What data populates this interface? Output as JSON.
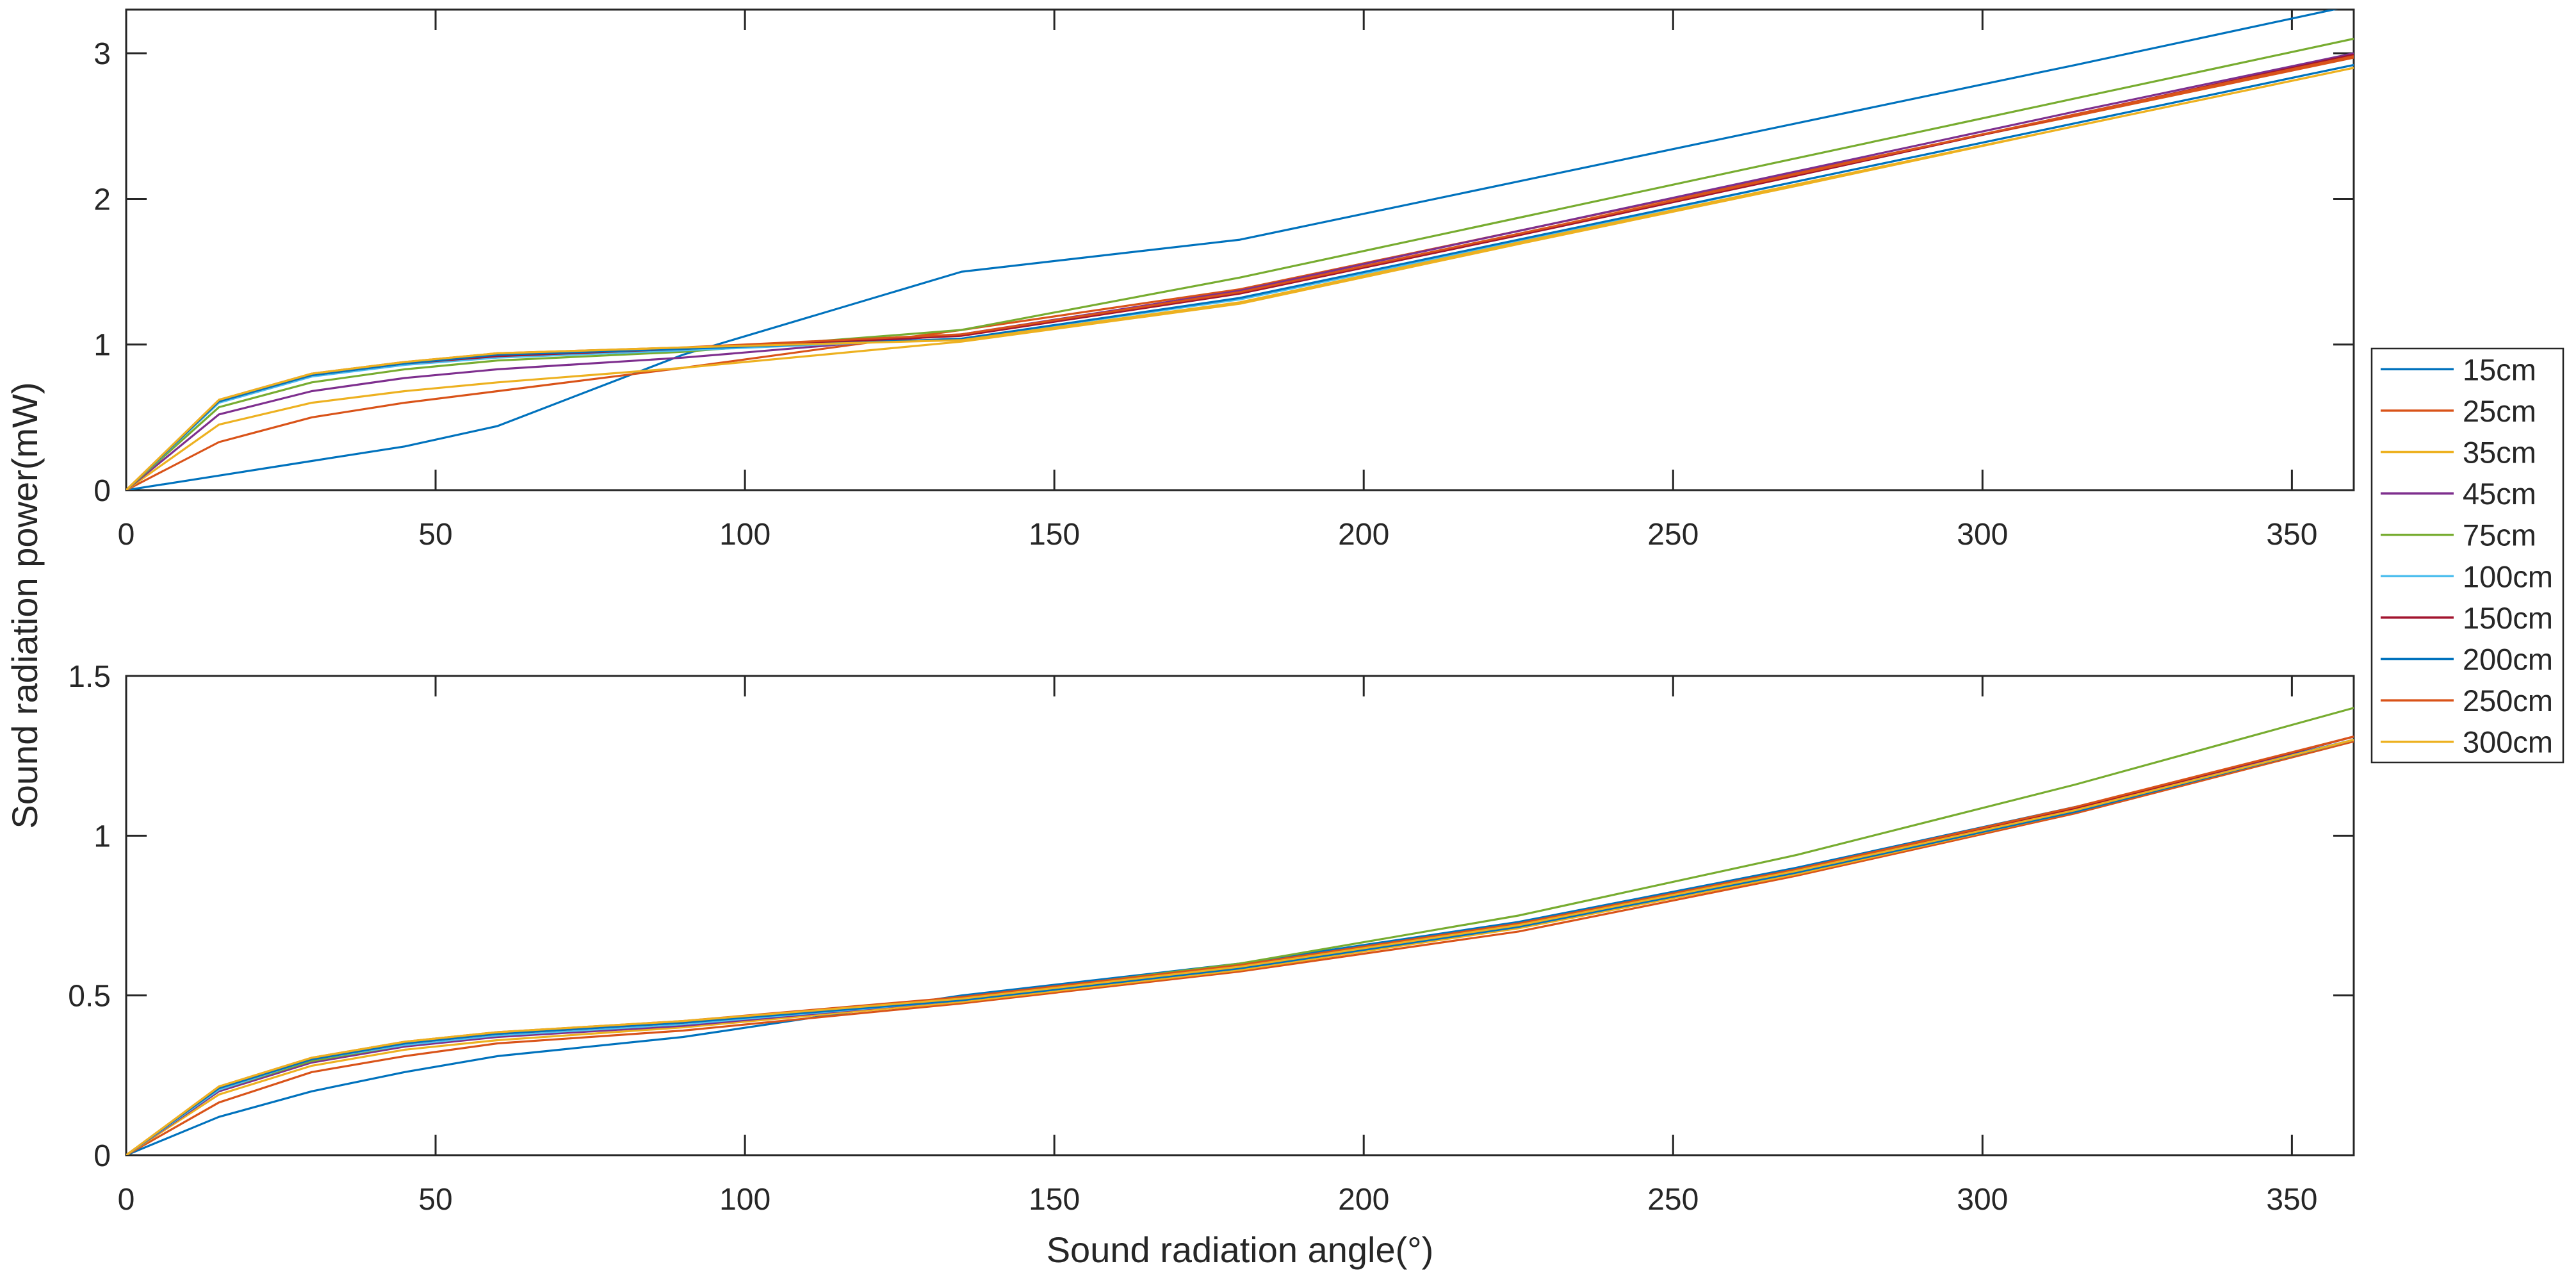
{
  "figure": {
    "background": "#ffffff",
    "axis_color": "#262626",
    "ylabel": "Sound radiation power(mW)",
    "xlabel": "Sound radiation angle(°)"
  },
  "legend": {
    "position": "right-of-top-plot",
    "entries": [
      {
        "label": "15cm",
        "color": "#0072BD"
      },
      {
        "label": "25cm",
        "color": "#D95319"
      },
      {
        "label": "35cm",
        "color": "#EDB120"
      },
      {
        "label": "45cm",
        "color": "#7E2F8E"
      },
      {
        "label": "75cm",
        "color": "#77AC30"
      },
      {
        "label": "100cm",
        "color": "#4DBEEE"
      },
      {
        "label": "150cm",
        "color": "#A2142F"
      },
      {
        "label": "200cm",
        "color": "#0072BD"
      },
      {
        "label": "250cm",
        "color": "#D95319"
      },
      {
        "label": "300cm",
        "color": "#EDB120"
      }
    ]
  },
  "chart_data": [
    {
      "type": "line",
      "subplot": "top",
      "title": "",
      "ylabel": "Sound radiation power(mW)",
      "xlabel": "Sound radiation angle(°)",
      "xlim": [
        0,
        360
      ],
      "ylim": [
        0,
        3.3
      ],
      "xticks": [
        0,
        50,
        100,
        150,
        200,
        250,
        300,
        350
      ],
      "yticks": [
        0,
        1,
        2,
        3
      ],
      "grid": false,
      "x": [
        0,
        15,
        30,
        45,
        60,
        90,
        135,
        180,
        225,
        270,
        315,
        360
      ],
      "series": [
        {
          "name": "15cm",
          "color": "#0072BD",
          "values": [
            0,
            0.1,
            0.2,
            0.3,
            0.44,
            0.93,
            1.5,
            1.72,
            2.12,
            2.52,
            2.92,
            3.33
          ]
        },
        {
          "name": "25cm",
          "color": "#D95319",
          "values": [
            0,
            0.33,
            0.5,
            0.6,
            0.68,
            0.84,
            1.1,
            1.38,
            1.78,
            2.18,
            2.57,
            2.97
          ]
        },
        {
          "name": "35cm",
          "color": "#EDB120",
          "values": [
            0,
            0.45,
            0.6,
            0.68,
            0.74,
            0.84,
            1.02,
            1.28,
            1.69,
            2.09,
            2.5,
            2.9
          ]
        },
        {
          "name": "45cm",
          "color": "#7E2F8E",
          "values": [
            0,
            0.52,
            0.68,
            0.77,
            0.83,
            0.91,
            1.07,
            1.37,
            1.78,
            2.19,
            2.6,
            3.0
          ]
        },
        {
          "name": "75cm",
          "color": "#77AC30",
          "values": [
            0,
            0.57,
            0.74,
            0.83,
            0.89,
            0.95,
            1.1,
            1.46,
            1.87,
            2.28,
            2.69,
            3.1
          ]
        },
        {
          "name": "100cm",
          "color": "#4DBEEE",
          "values": [
            0,
            0.6,
            0.78,
            0.86,
            0.91,
            0.96,
            1.04,
            1.31,
            1.71,
            2.12,
            2.52,
            2.92
          ]
        },
        {
          "name": "150cm",
          "color": "#A2142F",
          "values": [
            0,
            0.61,
            0.79,
            0.87,
            0.92,
            0.97,
            1.06,
            1.35,
            1.75,
            2.16,
            2.58,
            2.99
          ]
        },
        {
          "name": "200cm",
          "color": "#0072BD",
          "values": [
            0,
            0.61,
            0.79,
            0.87,
            0.93,
            0.97,
            1.04,
            1.32,
            1.72,
            2.12,
            2.52,
            2.92
          ]
        },
        {
          "name": "250cm",
          "color": "#D95319",
          "values": [
            0,
            0.62,
            0.8,
            0.88,
            0.94,
            0.98,
            1.07,
            1.36,
            1.76,
            2.17,
            2.58,
            2.98
          ]
        },
        {
          "name": "300cm",
          "color": "#EDB120",
          "values": [
            0,
            0.62,
            0.8,
            0.88,
            0.94,
            0.98,
            1.03,
            1.29,
            1.7,
            2.1,
            2.5,
            2.9
          ]
        }
      ]
    },
    {
      "type": "line",
      "subplot": "bottom",
      "title": "",
      "ylabel": "Sound radiation power(mW)",
      "xlabel": "Sound radiation angle(°)",
      "xlim": [
        0,
        360
      ],
      "ylim": [
        0,
        1.5
      ],
      "xticks": [
        0,
        50,
        100,
        150,
        200,
        250,
        300,
        350
      ],
      "yticks": [
        0,
        0.5,
        1,
        1.5
      ],
      "grid": false,
      "x": [
        0,
        15,
        30,
        45,
        60,
        90,
        135,
        180,
        225,
        270,
        315,
        360
      ],
      "series": [
        {
          "name": "15cm",
          "color": "#0072BD",
          "values": [
            0,
            0.12,
            0.2,
            0.26,
            0.31,
            0.37,
            0.5,
            0.6,
            0.73,
            0.9,
            1.09,
            1.3
          ]
        },
        {
          "name": "25cm",
          "color": "#D95319",
          "values": [
            0,
            0.165,
            0.26,
            0.31,
            0.35,
            0.39,
            0.475,
            0.575,
            0.7,
            0.875,
            1.07,
            1.295
          ]
        },
        {
          "name": "35cm",
          "color": "#EDB120",
          "values": [
            0,
            0.19,
            0.28,
            0.33,
            0.36,
            0.4,
            0.48,
            0.58,
            0.71,
            0.88,
            1.075,
            1.3
          ]
        },
        {
          "name": "45cm",
          "color": "#7E2F8E",
          "values": [
            0,
            0.2,
            0.29,
            0.34,
            0.37,
            0.405,
            0.485,
            0.585,
            0.715,
            0.885,
            1.08,
            1.31
          ]
        },
        {
          "name": "75cm",
          "color": "#77AC30",
          "values": [
            0,
            0.205,
            0.295,
            0.345,
            0.375,
            0.41,
            0.49,
            0.6,
            0.75,
            0.94,
            1.16,
            1.4
          ]
        },
        {
          "name": "100cm",
          "color": "#4DBEEE",
          "values": [
            0,
            0.205,
            0.3,
            0.345,
            0.375,
            0.41,
            0.485,
            0.585,
            0.715,
            0.885,
            1.08,
            1.3
          ]
        },
        {
          "name": "150cm",
          "color": "#A2142F",
          "values": [
            0,
            0.21,
            0.3,
            0.35,
            0.38,
            0.415,
            0.49,
            0.59,
            0.72,
            0.89,
            1.085,
            1.31
          ]
        },
        {
          "name": "200cm",
          "color": "#0072BD",
          "values": [
            0,
            0.21,
            0.3,
            0.35,
            0.38,
            0.415,
            0.485,
            0.585,
            0.715,
            0.885,
            1.075,
            1.3
          ]
        },
        {
          "name": "250cm",
          "color": "#D95319",
          "values": [
            0,
            0.215,
            0.305,
            0.355,
            0.385,
            0.42,
            0.495,
            0.595,
            0.725,
            0.895,
            1.09,
            1.31
          ]
        },
        {
          "name": "300cm",
          "color": "#EDB120",
          "values": [
            0,
            0.215,
            0.305,
            0.355,
            0.385,
            0.42,
            0.49,
            0.59,
            0.72,
            0.89,
            1.08,
            1.3
          ]
        }
      ]
    }
  ]
}
